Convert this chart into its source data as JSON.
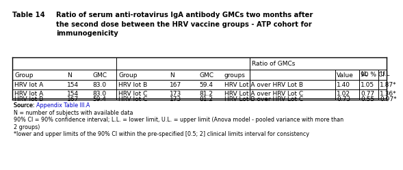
{
  "title_label": "Table 14",
  "title_text": "Ratio of serum anti-rotavirus IgA antibody GMCs two months after\nthe second dose between the HRV vaccine groups - ATP cohort for\nimmunogenicity",
  "rows": [
    [
      "HRV lot A",
      "154",
      "83.0",
      "HRV lot B",
      "167",
      "59.4",
      "HRV Lot A over HRV Lot B",
      "1.40",
      "1.05",
      "1.87*"
    ],
    [
      "HRV lot A",
      "154",
      "83.0",
      "HRV lot C",
      "173",
      "81.2",
      "HRV Lot A over HRV Lot C",
      "1.02",
      "0.77",
      "1.36*"
    ],
    [
      "HRV lot B",
      "167",
      "59.4",
      "HRV lot C",
      "173",
      "81.2",
      "HRV Lot B over HRV Lot C",
      "0.73",
      "0.55",
      "0.97*"
    ]
  ],
  "source_link_prefix": "Source: ",
  "source_link_text": "Appendix Table III.A",
  "source_link_color": "#0000CC",
  "footnote1": "N = number of subjects with available data",
  "footnote2": "90% CI = 90% confidence interval; L.L. = lower limit, U.L. = upper limit (Anova model - pooled variance with more than",
  "footnote2b": "2 groups)",
  "footnote3": "*lower and upper limits of the 90% CI within the pre-specified [0.5; 2] clinical limits interval for consistency",
  "background_color": "#ffffff",
  "title_fontsize": 7.2,
  "table_fontsize": 6.5,
  "footnote_fontsize": 5.8
}
